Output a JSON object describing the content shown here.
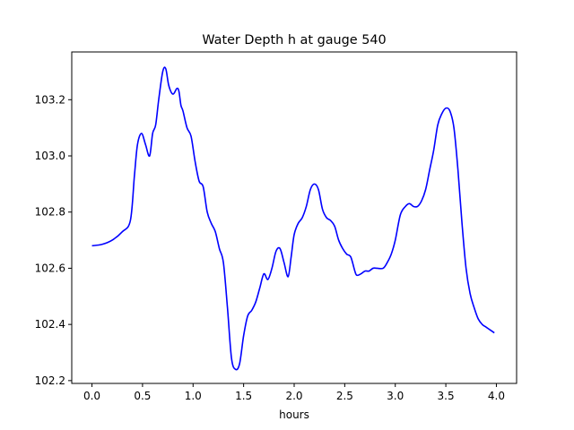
{
  "chart_data": {
    "type": "line",
    "title": "Water Depth h at gauge 540",
    "xlabel": "hours",
    "ylabel": "",
    "xlim": [
      -0.2,
      4.2
    ],
    "ylim": [
      102.19,
      103.37
    ],
    "xticks": [
      {
        "value": 0.0,
        "label": "0.0"
      },
      {
        "value": 0.5,
        "label": "0.5"
      },
      {
        "value": 1.0,
        "label": "1.0"
      },
      {
        "value": 1.5,
        "label": "1.5"
      },
      {
        "value": 2.0,
        "label": "2.0"
      },
      {
        "value": 2.5,
        "label": "2.5"
      },
      {
        "value": 3.0,
        "label": "3.0"
      },
      {
        "value": 3.5,
        "label": "3.5"
      },
      {
        "value": 4.0,
        "label": "4.0"
      }
    ],
    "yticks": [
      {
        "value": 102.2,
        "label": "102.2"
      },
      {
        "value": 102.4,
        "label": "102.4"
      },
      {
        "value": 102.6,
        "label": "102.6"
      },
      {
        "value": 102.8,
        "label": "102.8"
      },
      {
        "value": 103.0,
        "label": "103.0"
      },
      {
        "value": 103.2,
        "label": "103.2"
      }
    ],
    "grid": false,
    "series": [
      {
        "color": "#0000ff",
        "x": [
          0.0,
          0.1,
          0.2,
          0.3,
          0.38,
          0.42,
          0.45,
          0.49,
          0.53,
          0.57,
          0.6,
          0.63,
          0.66,
          0.7,
          0.73,
          0.76,
          0.8,
          0.84,
          0.86,
          0.88,
          0.9,
          0.94,
          0.98,
          1.02,
          1.06,
          1.1,
          1.14,
          1.18,
          1.22,
          1.26,
          1.3,
          1.34,
          1.38,
          1.42,
          1.46,
          1.5,
          1.54,
          1.58,
          1.62,
          1.66,
          1.7,
          1.74,
          1.78,
          1.82,
          1.86,
          1.9,
          1.94,
          1.97,
          2.0,
          2.04,
          2.08,
          2.12,
          2.16,
          2.2,
          2.24,
          2.28,
          2.32,
          2.36,
          2.4,
          2.44,
          2.48,
          2.52,
          2.56,
          2.6,
          2.62,
          2.66,
          2.7,
          2.74,
          2.78,
          2.82,
          2.88,
          2.92,
          2.96,
          3.0,
          3.05,
          3.1,
          3.14,
          3.18,
          3.22,
          3.26,
          3.3,
          3.34,
          3.38,
          3.42,
          3.46,
          3.5,
          3.54,
          3.58,
          3.62,
          3.66,
          3.7,
          3.74,
          3.78,
          3.82,
          3.86,
          3.9,
          3.94,
          3.98
        ],
        "y": [
          102.68,
          102.685,
          102.7,
          102.73,
          102.77,
          102.93,
          103.04,
          103.08,
          103.04,
          103.0,
          103.08,
          103.11,
          103.2,
          103.3,
          103.31,
          103.25,
          103.22,
          103.24,
          103.23,
          103.18,
          103.16,
          103.1,
          103.07,
          102.98,
          102.91,
          102.89,
          102.8,
          102.76,
          102.73,
          102.67,
          102.62,
          102.46,
          102.28,
          102.24,
          102.26,
          102.36,
          102.43,
          102.45,
          102.48,
          102.53,
          102.58,
          102.56,
          102.6,
          102.66,
          102.67,
          102.62,
          102.57,
          102.64,
          102.72,
          102.76,
          102.78,
          102.82,
          102.88,
          102.9,
          102.88,
          102.81,
          102.78,
          102.77,
          102.75,
          102.7,
          102.67,
          102.65,
          102.64,
          102.59,
          102.575,
          102.58,
          102.59,
          102.59,
          102.6,
          102.6,
          102.6,
          102.62,
          102.65,
          102.7,
          102.79,
          102.82,
          102.83,
          102.82,
          102.82,
          102.84,
          102.88,
          102.95,
          103.02,
          103.11,
          103.15,
          103.17,
          103.16,
          103.1,
          102.95,
          102.76,
          102.6,
          102.51,
          102.46,
          102.42,
          102.4,
          102.39,
          102.38,
          102.37
        ]
      }
    ]
  }
}
